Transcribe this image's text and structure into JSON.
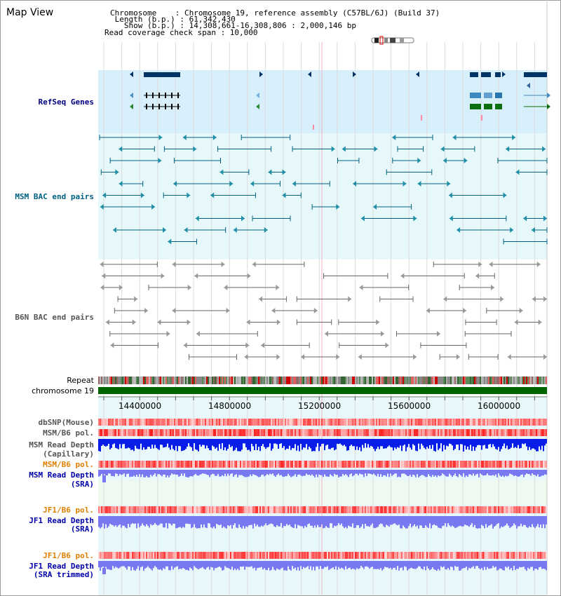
{
  "header": {
    "title": "Map View",
    "chromosome_line": "Chromosome    : Chromosome 19, reference assembly (C57BL/6J) (Build 37)",
    "length_line": " Length (b.p.) : 61,342,430",
    "show_line": "   Show (b.p.) : 14,308,661-16,308,806 : 2,000,146 bp",
    "coverage_line": "Read coverage check span : 10,000"
  },
  "tracks": {
    "refseq": "RefSeq Genes",
    "msm_bac": "MSM BAC end pairs",
    "b6n_bac": "B6N BAC end pairs",
    "repeat": "Repeat",
    "chromosome": "chromosome 19",
    "dbsnp": "dbSNP(Mouse)",
    "msm_b6_pol_1": "MSM/B6 pol.",
    "msm_depth_cap_1": "MSM Read Depth",
    "msm_depth_cap_2": "(Capillary)",
    "msm_b6_pol_2": "MSM/B6 pol.",
    "msm_depth_sra_1": "MSM Read Depth",
    "msm_depth_sra_2": "(SRA)",
    "jf1_b6_pol_1": "JF1/B6 pol.",
    "jf1_depth_sra_1": "JF1 Read Depth",
    "jf1_depth_sra_2": "(SRA)",
    "jf1_b6_pol_2": "JF1/B6 pol.",
    "jf1_depth_trim_1": "JF1 Read Depth",
    "jf1_depth_trim_2": "(SRA trimmed)"
  },
  "axis": {
    "ticks": [
      "14400000",
      "14800000",
      "15200000",
      "15600000",
      "16000000"
    ]
  },
  "colors": {
    "refseq_label": "#000080",
    "msm_bac_label": "#006080",
    "b6n_bac_label": "#555555",
    "orange_label": "#e08000",
    "blue_label": "#0000aa",
    "chrom_bar": "#006400",
    "refseq_bg": "#d6effa",
    "msm_bg": "#e6f8fa",
    "depth_blue": "#0a1de8",
    "depth_light": "#7878f0"
  }
}
